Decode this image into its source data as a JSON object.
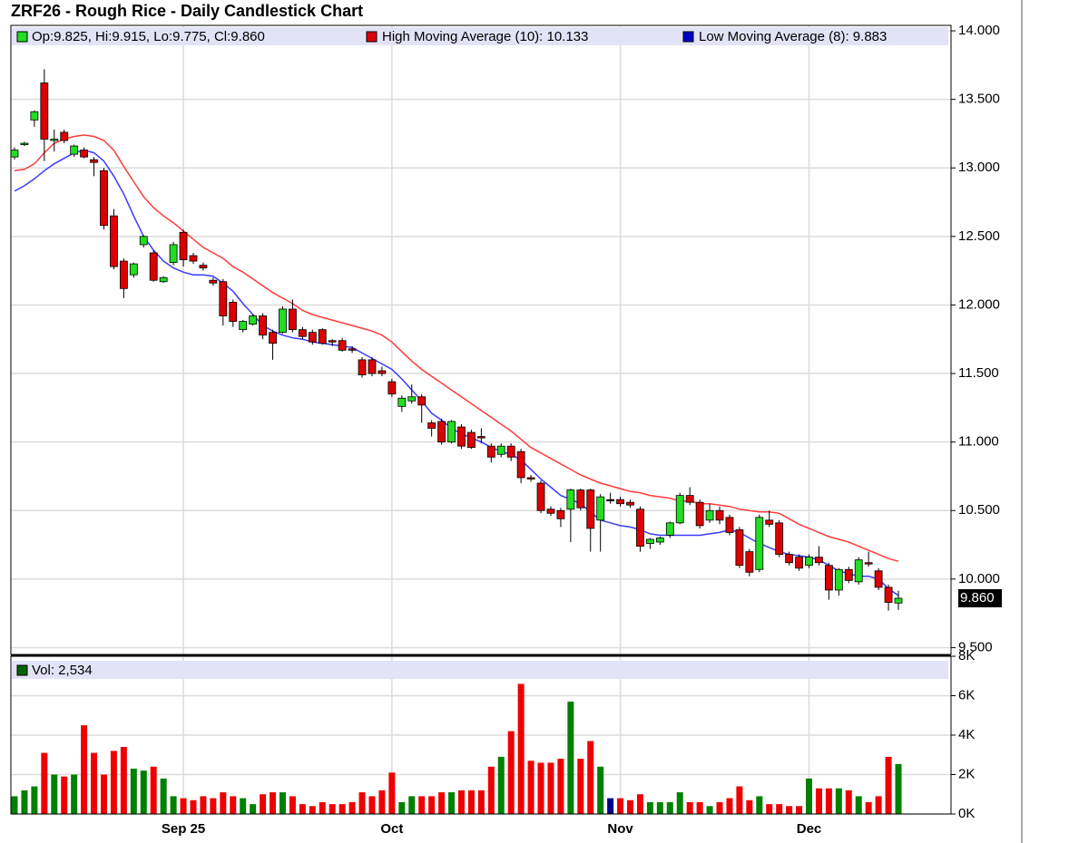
{
  "chart_data": [
    {
      "type": "candlestick",
      "title": "ZRF26 - Rough Rice - Daily Candlestick Chart",
      "ohlc_label": "Op:9.825, Hi:9.915, Lo:9.775, Cl:9.860",
      "up_color": "#22dd22",
      "down_color": "#dd0000",
      "categories": [
        null,
        null,
        null,
        null,
        null,
        null,
        null,
        null,
        null,
        null,
        null,
        null,
        null,
        null,
        null,
        null,
        null,
        "Sep 25",
        null,
        null,
        null,
        null,
        null,
        null,
        null,
        null,
        null,
        null,
        null,
        null,
        null,
        null,
        null,
        null,
        null,
        null,
        null,
        null,
        "Oct",
        null,
        null,
        null,
        null,
        null,
        null,
        null,
        null,
        null,
        null,
        null,
        null,
        null,
        null,
        null,
        null,
        null,
        null,
        null,
        null,
        null,
        null,
        "Nov",
        null,
        null,
        null,
        null,
        null,
        null,
        null,
        null,
        null,
        null,
        null,
        null,
        null,
        null,
        null,
        null,
        null,
        null,
        "Dec",
        null,
        null,
        null,
        null,
        null,
        null,
        null,
        null,
        null
      ],
      "open": [
        13.08,
        13.17,
        13.35,
        13.62,
        13.2,
        13.26,
        13.1,
        13.13,
        13.06,
        12.98,
        12.65,
        12.32,
        12.22,
        12.44,
        12.38,
        12.17,
        12.31,
        12.53,
        12.36,
        12.29,
        12.18,
        12.17,
        12.02,
        11.82,
        11.86,
        11.92,
        11.8,
        11.8,
        11.97,
        11.82,
        11.8,
        11.82,
        11.74,
        11.74,
        11.68,
        11.6,
        11.6,
        11.52,
        11.44,
        11.26,
        11.3,
        11.33,
        11.14,
        11.15,
        11.0,
        11.11,
        11.07,
        11.04,
        10.97,
        10.91,
        10.97,
        10.93,
        10.74,
        10.7,
        10.51,
        10.5,
        10.51,
        10.65,
        10.65,
        10.43,
        10.58,
        10.58,
        10.56,
        10.51,
        10.26,
        10.27,
        10.32,
        10.41,
        10.61,
        10.56,
        10.43,
        10.5,
        10.45,
        10.36,
        10.2,
        10.07,
        10.43,
        10.41,
        10.18,
        10.16,
        10.1,
        10.16,
        10.1,
        9.92,
        10.07,
        9.98,
        10.12,
        10.06,
        9.94,
        9.825
      ],
      "high": [
        13.15,
        13.19,
        13.42,
        13.72,
        13.28,
        13.28,
        13.17,
        13.15,
        13.08,
        13.0,
        12.7,
        12.34,
        12.31,
        12.51,
        12.4,
        12.21,
        12.46,
        12.55,
        12.38,
        12.31,
        12.2,
        12.19,
        12.04,
        11.89,
        11.93,
        11.94,
        11.82,
        11.99,
        12.04,
        11.84,
        11.82,
        11.83,
        11.75,
        11.76,
        11.7,
        11.62,
        11.62,
        11.55,
        11.46,
        11.34,
        11.42,
        11.35,
        11.16,
        11.17,
        11.16,
        11.13,
        11.09,
        11.1,
        10.99,
        10.99,
        10.99,
        10.95,
        10.76,
        10.72,
        10.53,
        10.52,
        10.66,
        10.66,
        10.66,
        10.62,
        10.63,
        10.6,
        10.58,
        10.53,
        10.3,
        10.31,
        10.42,
        10.63,
        10.67,
        10.58,
        10.55,
        10.53,
        10.47,
        10.38,
        10.22,
        10.47,
        10.5,
        10.43,
        10.2,
        10.18,
        10.18,
        10.24,
        10.12,
        10.08,
        10.09,
        10.16,
        10.2,
        10.08,
        9.96,
        9.915
      ],
      "low": [
        13.06,
        13.16,
        13.3,
        13.05,
        13.12,
        13.18,
        13.08,
        13.07,
        12.94,
        12.55,
        12.26,
        12.05,
        12.2,
        12.42,
        12.17,
        12.16,
        12.29,
        12.28,
        12.3,
        12.25,
        12.14,
        11.85,
        11.84,
        11.8,
        11.85,
        11.75,
        11.6,
        11.79,
        11.8,
        11.75,
        11.71,
        11.71,
        11.7,
        11.66,
        11.65,
        11.47,
        11.48,
        11.48,
        11.33,
        11.22,
        11.28,
        11.14,
        11.04,
        10.98,
        10.99,
        10.95,
        10.95,
        10.99,
        10.85,
        10.89,
        10.86,
        10.7,
        10.71,
        10.48,
        10.46,
        10.38,
        10.27,
        10.5,
        10.2,
        10.2,
        10.55,
        10.53,
        10.52,
        10.2,
        10.22,
        10.25,
        10.3,
        10.4,
        10.54,
        10.37,
        10.41,
        10.4,
        10.32,
        10.08,
        10.02,
        10.05,
        10.38,
        10.16,
        10.1,
        10.06,
        10.08,
        10.1,
        9.85,
        9.88,
        9.97,
        9.96,
        10.09,
        9.92,
        9.77,
        9.775
      ],
      "close": [
        13.13,
        13.18,
        13.41,
        13.21,
        13.21,
        13.2,
        13.16,
        13.08,
        13.04,
        12.58,
        12.28,
        12.12,
        12.3,
        12.5,
        12.18,
        12.2,
        12.44,
        12.33,
        12.32,
        12.27,
        12.16,
        11.92,
        11.88,
        11.88,
        11.92,
        11.78,
        11.72,
        11.97,
        11.82,
        11.77,
        11.73,
        11.72,
        11.73,
        11.67,
        11.67,
        11.49,
        11.5,
        11.5,
        11.35,
        11.32,
        11.33,
        11.27,
        11.1,
        11.0,
        11.15,
        10.97,
        10.96,
        11.03,
        10.89,
        10.97,
        10.89,
        10.74,
        10.73,
        10.5,
        10.48,
        10.44,
        10.65,
        10.52,
        10.37,
        10.6,
        10.58,
        10.55,
        10.54,
        10.24,
        10.29,
        10.3,
        10.41,
        10.61,
        10.56,
        10.39,
        10.5,
        10.43,
        10.34,
        10.1,
        10.05,
        10.45,
        10.4,
        10.18,
        10.12,
        10.08,
        10.16,
        10.12,
        9.92,
        10.07,
        9.99,
        10.14,
        10.11,
        9.94,
        9.83,
        9.86
      ],
      "series": [
        {
          "name": "High Moving Average (10): 10.133",
          "color": "#ff3b3b",
          "values": [
            12.98,
            12.99,
            13.03,
            13.11,
            13.18,
            13.21,
            13.23,
            13.24,
            13.23,
            13.2,
            13.13,
            13.01,
            12.9,
            12.79,
            12.71,
            12.65,
            12.6,
            12.54,
            12.48,
            12.42,
            12.38,
            12.34,
            12.28,
            12.24,
            12.19,
            12.14,
            12.09,
            12.05,
            12.01,
            11.96,
            11.93,
            11.91,
            11.89,
            11.87,
            11.85,
            11.83,
            11.81,
            11.78,
            11.73,
            11.66,
            11.59,
            11.53,
            11.48,
            11.43,
            11.38,
            11.33,
            11.28,
            11.23,
            11.18,
            11.13,
            11.08,
            11.02,
            10.96,
            10.92,
            10.88,
            10.84,
            10.8,
            10.76,
            10.73,
            10.7,
            10.68,
            10.66,
            10.64,
            10.63,
            10.61,
            10.6,
            10.59,
            10.57,
            10.57,
            10.55,
            10.55,
            10.54,
            10.53,
            10.51,
            10.5,
            10.49,
            10.49,
            10.48,
            10.44,
            10.4,
            10.37,
            10.34,
            10.31,
            10.29,
            10.27,
            10.24,
            10.21,
            10.18,
            10.15,
            10.13
          ]
        },
        {
          "name": "Low Moving Average (8): 9.883",
          "color": "#3b3bff",
          "values": [
            12.83,
            12.87,
            12.92,
            12.98,
            13.03,
            13.07,
            13.11,
            13.13,
            13.11,
            13.05,
            12.94,
            12.81,
            12.65,
            12.5,
            12.4,
            12.32,
            12.27,
            12.24,
            12.22,
            12.22,
            12.21,
            12.16,
            12.1,
            12.01,
            11.93,
            11.85,
            11.81,
            11.78,
            11.76,
            11.75,
            11.73,
            11.72,
            11.71,
            11.7,
            11.69,
            11.65,
            11.61,
            11.57,
            11.53,
            11.46,
            11.38,
            11.3,
            11.21,
            11.16,
            11.1,
            11.06,
            11.03,
            11.0,
            10.96,
            10.93,
            10.91,
            10.87,
            10.8,
            10.73,
            10.67,
            10.61,
            10.58,
            10.55,
            10.49,
            10.43,
            10.41,
            10.39,
            10.38,
            10.36,
            10.33,
            10.32,
            10.32,
            10.32,
            10.32,
            10.32,
            10.33,
            10.34,
            10.36,
            10.34,
            10.3,
            10.26,
            10.23,
            10.2,
            10.18,
            10.17,
            10.16,
            10.14,
            10.1,
            10.06,
            10.04,
            10.02,
            10.02,
            10.0,
            9.93,
            9.88
          ]
        }
      ],
      "last_price": {
        "value": 9.86,
        "label": "9.860"
      },
      "ylim": [
        9.45,
        14.04
      ],
      "yticks": [
        {
          "value": 9.5,
          "label": "9.500"
        },
        {
          "value": 10,
          "label": "10.000"
        },
        {
          "value": 10.5,
          "label": "10.500"
        },
        {
          "value": 11,
          "label": "11.000"
        },
        {
          "value": 11.5,
          "label": "11.500"
        },
        {
          "value": 12,
          "label": "12.000"
        },
        {
          "value": 12.5,
          "label": "12.500"
        },
        {
          "value": 13,
          "label": "13.000"
        },
        {
          "value": 13.5,
          "label": "13.500"
        },
        {
          "value": 14,
          "label": "14.000"
        }
      ],
      "grid": true
    },
    {
      "type": "bar",
      "name": "Vol: 2,534",
      "legend_color": "#006400",
      "unchanged_color": "#00008b",
      "values": [
        900,
        1200,
        1400,
        3100,
        2000,
        1900,
        2000,
        4500,
        3100,
        2000,
        3200,
        3400,
        2300,
        2200,
        2400,
        1800,
        900,
        800,
        700,
        900,
        800,
        1100,
        900,
        800,
        500,
        1000,
        1100,
        1100,
        900,
        500,
        400,
        600,
        500,
        500,
        600,
        1100,
        900,
        1200,
        2100,
        600,
        900,
        900,
        900,
        1100,
        1100,
        1200,
        1200,
        1200,
        2400,
        2900,
        4200,
        6600,
        2700,
        2600,
        2600,
        2800,
        5700,
        2800,
        3700,
        2400,
        800,
        800,
        700,
        1000,
        600,
        600,
        600,
        1100,
        600,
        600,
        400,
        600,
        800,
        1400,
        700,
        900,
        500,
        500,
        400,
        400,
        1800,
        1300,
        1300,
        1300,
        1200,
        900,
        600,
        900,
        2900,
        2534
      ],
      "ylim": [
        0,
        8000
      ],
      "yticks": [
        {
          "value": 0,
          "label": "0K"
        },
        {
          "value": 2000,
          "label": "2K"
        },
        {
          "value": 4000,
          "label": "4K"
        },
        {
          "value": 6000,
          "label": "6K"
        },
        {
          "value": 8000,
          "label": "8K"
        }
      ],
      "grid": true
    }
  ]
}
